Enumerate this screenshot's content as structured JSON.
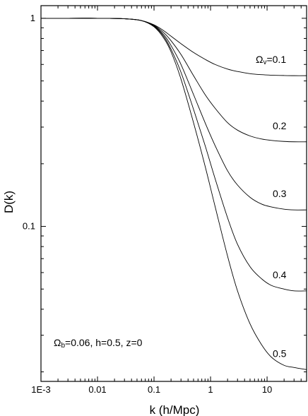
{
  "chart_data": {
    "type": "line",
    "title": "",
    "xlabel": "k (h/Mpc)",
    "ylabel": "D(k)",
    "xscale": "log",
    "yscale": "log",
    "xlim": [
      0.001,
      50
    ],
    "ylim": [
      0.018,
      1.15
    ],
    "grid": false,
    "x_ticks": [
      {
        "value": 0.001,
        "label": "1E-3"
      },
      {
        "value": 0.01,
        "label": "0.01"
      },
      {
        "value": 0.1,
        "label": "0.1"
      },
      {
        "value": 1,
        "label": "1"
      },
      {
        "value": 10,
        "label": "10"
      }
    ],
    "y_ticks": [
      {
        "value": 0.1,
        "label": "0.1"
      },
      {
        "value": 1,
        "label": "1"
      }
    ],
    "x": [
      0.001,
      0.003,
      0.01,
      0.03,
      0.06,
      0.1,
      0.15,
      0.2,
      0.3,
      0.5,
      0.8,
      1.2,
      2,
      3,
      5,
      8,
      12,
      20,
      30,
      50
    ],
    "series": [
      {
        "label_prefix": "Ω",
        "label_sub": "v",
        "label_suffix": "=0.1",
        "values": [
          1,
          1,
          1,
          0.995,
          0.975,
          0.93,
          0.87,
          0.82,
          0.755,
          0.685,
          0.635,
          0.6,
          0.57,
          0.555,
          0.542,
          0.536,
          0.533,
          0.531,
          0.53,
          0.53
        ]
      },
      {
        "label_prefix": "",
        "label_sub": "",
        "label_suffix": "0.2",
        "values": [
          1,
          1,
          1,
          0.995,
          0.975,
          0.925,
          0.85,
          0.78,
          0.67,
          0.53,
          0.43,
          0.37,
          0.315,
          0.29,
          0.272,
          0.263,
          0.259,
          0.256,
          0.255,
          0.255
        ]
      },
      {
        "label_prefix": "",
        "label_sub": "",
        "label_suffix": "0.3",
        "values": [
          1,
          1,
          1,
          0.995,
          0.975,
          0.92,
          0.83,
          0.74,
          0.6,
          0.43,
          0.315,
          0.245,
          0.185,
          0.158,
          0.138,
          0.128,
          0.124,
          0.121,
          0.12,
          0.12
        ]
      },
      {
        "label_prefix": "",
        "label_sub": "",
        "label_suffix": "0.4",
        "values": [
          1,
          1,
          1,
          0.995,
          0.975,
          0.915,
          0.815,
          0.71,
          0.55,
          0.365,
          0.245,
          0.17,
          0.11,
          0.082,
          0.064,
          0.056,
          0.052,
          0.05,
          0.049,
          0.049
        ]
      },
      {
        "label_prefix": "",
        "label_sub": "",
        "label_suffix": "0.5",
        "values": [
          1,
          1,
          1,
          0.995,
          0.975,
          0.91,
          0.8,
          0.69,
          0.51,
          0.315,
          0.195,
          0.125,
          0.072,
          0.049,
          0.034,
          0.027,
          0.0235,
          0.0215,
          0.021,
          0.0205
        ]
      }
    ],
    "annotations": [
      {
        "prefix": "Ω",
        "sub": "b",
        "text": "=0.06, h=0.5, z=0"
      }
    ]
  }
}
